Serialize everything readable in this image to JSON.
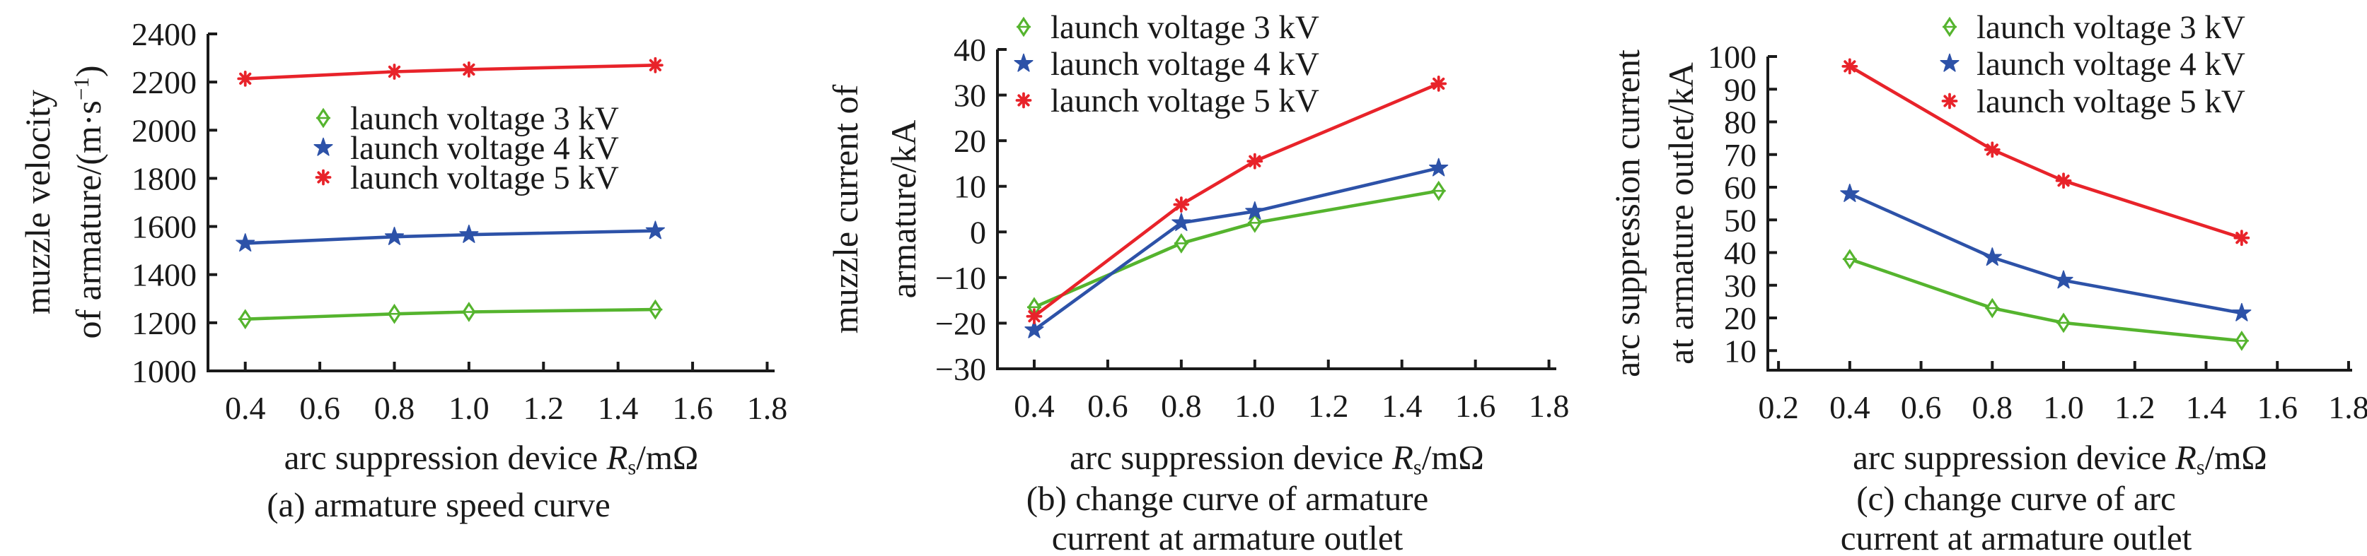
{
  "figure": {
    "background": "#ffffff"
  },
  "colors": {
    "green": "#55b42e",
    "blue": "#2d52a8",
    "red": "#e8232a",
    "axis": "#1a1a1a",
    "text": "#1a1a1a"
  },
  "chart_data": [
    {
      "id": "a",
      "type": "line",
      "ylabel_line1": "muzzle velocity",
      "ylabel_line2_pre": "of armature/(m·s",
      "ylabel_line2_sup": "−1",
      "ylabel_line2_post": ")",
      "xlabel_prefix": "arc suppression device ",
      "xlabel_var": "R",
      "xlabel_sub": "s",
      "xlabel_suffix": "/mΩ",
      "caption_line1": "(a) armature speed curve",
      "caption_line2": "",
      "x": [
        0.4,
        0.8,
        1.0,
        1.5
      ],
      "series": [
        {
          "name": "launch voltage 3 kV",
          "color": "green",
          "marker": "diamond",
          "values": [
            1215,
            1237,
            1245,
            1255
          ]
        },
        {
          "name": "launch voltage 4 kV",
          "color": "blue",
          "marker": "star",
          "values": [
            1530,
            1557,
            1566,
            1582
          ]
        },
        {
          "name": "launch voltage 5 kV",
          "color": "red",
          "marker": "asterisk",
          "values": [
            2214,
            2243,
            2252,
            2270
          ]
        }
      ],
      "xlim": [
        0.3,
        1.82
      ],
      "ylim": [
        1000,
        2400
      ],
      "xticks": [
        0.4,
        0.6,
        0.8,
        1.0,
        1.2,
        1.4,
        1.6,
        1.8
      ],
      "xtick_labels": [
        "0.4",
        "0.6",
        "0.8",
        "1.0",
        "1.2",
        "1.4",
        "1.6",
        "1.8"
      ],
      "yticks": [
        1000,
        1200,
        1400,
        1600,
        1800,
        2000,
        2200,
        2400
      ],
      "ytick_labels": [
        "1000",
        "1200",
        "1400",
        "1600",
        "1800",
        "2000",
        "2200",
        "2400"
      ],
      "grid": false,
      "legend_position": "inside-upper-middle"
    },
    {
      "id": "b",
      "type": "line",
      "ylabel_line1": "muzzle current of",
      "ylabel_line2_pre": "armature/kA",
      "ylabel_line2_sup": "",
      "ylabel_line2_post": "",
      "xlabel_prefix": "arc suppression device ",
      "xlabel_var": "R",
      "xlabel_sub": "s",
      "xlabel_suffix": "/mΩ",
      "caption_line1": "(b) change curve of armature",
      "caption_line2": "current at armature outlet",
      "x": [
        0.4,
        0.8,
        1.0,
        1.5
      ],
      "series": [
        {
          "name": "launch voltage 3 kV",
          "color": "green",
          "marker": "diamond",
          "values": [
            -16.5,
            -2.5,
            2,
            9
          ]
        },
        {
          "name": "launch voltage 4 kV",
          "color": "blue",
          "marker": "star",
          "values": [
            -21.5,
            2,
            4.5,
            14
          ]
        },
        {
          "name": "launch voltage 5 kV",
          "color": "red",
          "marker": "asterisk",
          "values": [
            -18.5,
            6,
            15.5,
            32.5
          ]
        }
      ],
      "xlim": [
        0.3,
        1.82
      ],
      "ylim": [
        -30,
        40
      ],
      "xticks": [
        0.4,
        0.6,
        0.8,
        1.0,
        1.2,
        1.4,
        1.6,
        1.8
      ],
      "xtick_labels": [
        "0.4",
        "0.6",
        "0.8",
        "1.0",
        "1.2",
        "1.4",
        "1.6",
        "1.8"
      ],
      "yticks": [
        -30,
        -20,
        -10,
        0,
        10,
        20,
        30,
        40
      ],
      "ytick_labels": [
        "−30",
        "−20",
        "−10",
        "0",
        "10",
        "20",
        "30",
        "40"
      ],
      "grid": false,
      "legend_position": "top-left"
    },
    {
      "id": "c",
      "type": "line",
      "ylabel_line1": "arc suppression current",
      "ylabel_line2_pre": "at armature outlet/kA",
      "ylabel_line2_sup": "",
      "ylabel_line2_post": "",
      "xlabel_prefix": "arc suppression device ",
      "xlabel_var": "R",
      "xlabel_sub": "s",
      "xlabel_suffix": "/mΩ",
      "caption_line1": "(c) change curve of arc",
      "caption_line2": "current at armature outlet",
      "x": [
        0.4,
        0.8,
        1.0,
        1.5
      ],
      "series": [
        {
          "name": "launch voltage 3 kV",
          "color": "green",
          "marker": "diamond",
          "values": [
            38,
            23,
            18.5,
            13
          ]
        },
        {
          "name": "launch voltage 4 kV",
          "color": "blue",
          "marker": "star",
          "values": [
            58,
            38.5,
            31.5,
            21.5
          ]
        },
        {
          "name": "launch voltage 5 kV",
          "color": "red",
          "marker": "asterisk",
          "values": [
            97,
            71.5,
            62,
            44.5
          ]
        }
      ],
      "xlim": [
        0.17,
        1.81
      ],
      "ylim": [
        4,
        100
      ],
      "xticks": [
        0.2,
        0.4,
        0.6,
        0.8,
        1.0,
        1.2,
        1.4,
        1.6,
        1.8
      ],
      "xtick_labels": [
        "0.2",
        "0.4",
        "0.6",
        "0.8",
        "1.0",
        "1.2",
        "1.4",
        "1.6",
        "1.8"
      ],
      "yticks": [
        10,
        20,
        30,
        40,
        50,
        60,
        70,
        80,
        90,
        100
      ],
      "ytick_labels": [
        "10",
        "20",
        "30",
        "40",
        "50",
        "60",
        "70",
        "80",
        "90",
        "100"
      ],
      "grid": false,
      "legend_position": "top-right"
    }
  ]
}
